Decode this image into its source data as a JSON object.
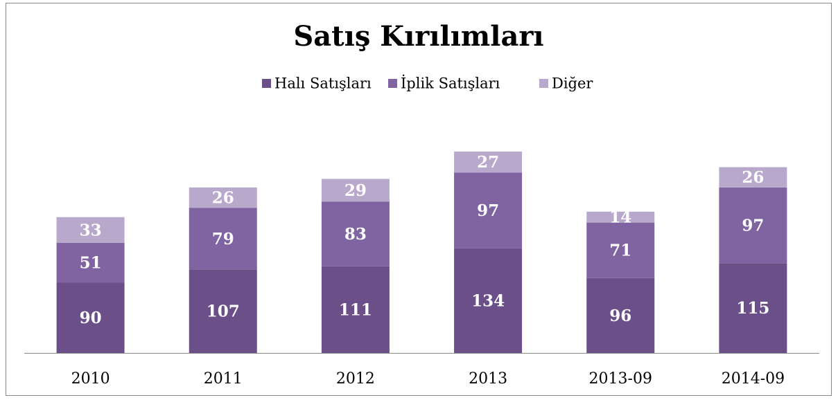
{
  "chart_data": {
    "type": "bar",
    "stacked": true,
    "title": "Satış Kırılımları",
    "categories": [
      "2010",
      "2011",
      "2012",
      "2013",
      "2013-09",
      "2014-09"
    ],
    "series": [
      {
        "name": "Halı Satışları",
        "color": "#6a4f89",
        "values": [
          90,
          107,
          111,
          134,
          96,
          115
        ]
      },
      {
        "name": "İplik Satışları",
        "color": "#8064a2",
        "values": [
          51,
          79,
          83,
          97,
          71,
          97
        ]
      },
      {
        "name": "Diğer",
        "color": "#b8a9cc",
        "values": [
          33,
          26,
          29,
          27,
          14,
          26
        ]
      }
    ],
    "legend": "top"
  }
}
